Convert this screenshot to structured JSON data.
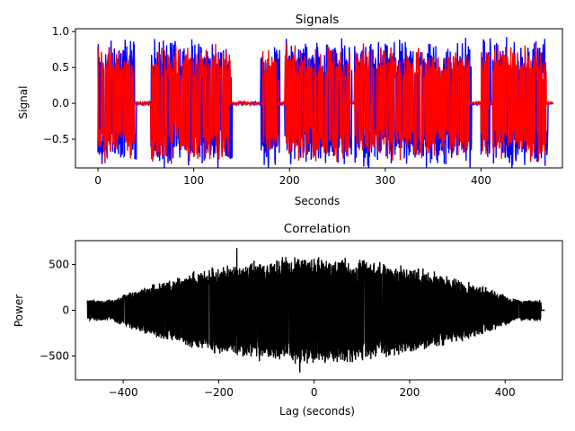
{
  "chart_data": [
    {
      "type": "line",
      "title": "Signals",
      "xlabel": "Seconds",
      "ylabel": "Signal",
      "xlim": [
        -23.5,
        485
      ],
      "ylim": [
        -0.9,
        1.04
      ],
      "xticks": [
        0,
        100,
        200,
        300,
        400
      ],
      "yticks": [
        -0.5,
        0.0,
        0.5,
        1.0
      ],
      "ytick_labels": [
        "−0.5",
        "0.0",
        "0.5",
        "1.0"
      ],
      "grid": false,
      "series": [
        {
          "color": "#0000ff",
          "x_range": [
            0,
            475
          ],
          "peak_amplitude": 0.95,
          "active_segments": [
            [
              0,
              40
            ],
            [
              55,
              140
            ],
            [
              170,
              190
            ],
            [
              195,
              265
            ],
            [
              268,
              390
            ],
            [
              400,
              410
            ],
            [
              412,
              470
            ]
          ],
          "quiet_amplitude": 0.02
        },
        {
          "color": "#ff0000",
          "x_range": [
            0,
            475
          ],
          "peak_amplitude": 0.85,
          "active_segments": [
            [
              0,
              38
            ],
            [
              55,
              138
            ],
            [
              172,
              188
            ],
            [
              195,
              263
            ],
            [
              268,
              388
            ],
            [
              400,
              408
            ],
            [
              412,
              468
            ]
          ],
          "quiet_amplitude": 0.02
        }
      ]
    },
    {
      "type": "line",
      "title": "Correlation",
      "xlabel": "Lag (seconds)",
      "ylabel": "Power",
      "xlim": [
        -500,
        520
      ],
      "ylim": [
        -760,
        760
      ],
      "xticks": [
        -400,
        -200,
        0,
        200,
        400
      ],
      "xtick_labels": [
        "−400",
        "−200",
        "0",
        "200",
        "400"
      ],
      "yticks": [
        -500,
        0,
        500
      ],
      "ytick_labels": [
        "−500",
        "0",
        "500"
      ],
      "grid": false,
      "series": [
        {
          "color": "#000000",
          "x_range": [
            -475,
            475
          ],
          "envelope_peak": 600,
          "spike": {
            "x": -162,
            "y": 680
          },
          "min": {
            "x": -30,
            "y": -680
          }
        }
      ]
    }
  ]
}
